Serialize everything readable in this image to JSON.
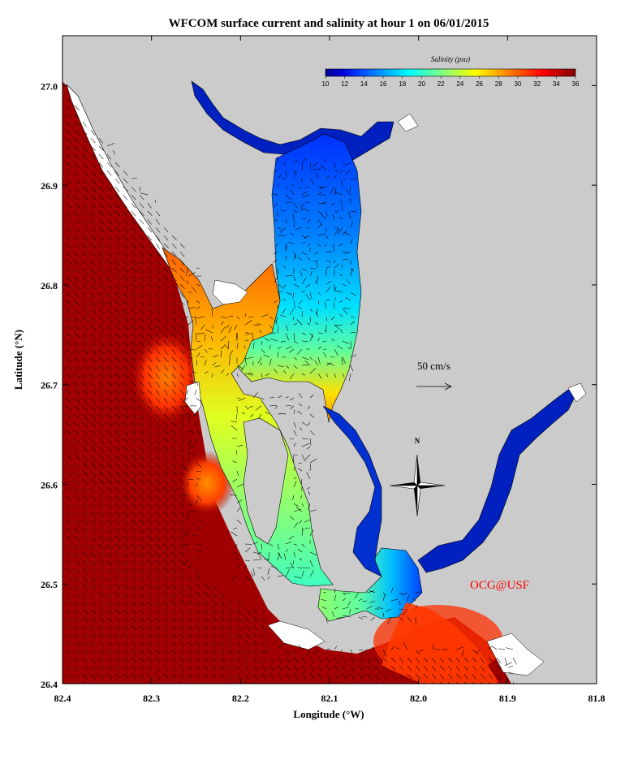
{
  "title": "WFCOM surface current and salinity at hour 1 on 06/01/2015",
  "xlabel": "Longitude (°W)",
  "ylabel": "Latitude (°N)",
  "colorbar": {
    "title": "Salinity (psu)",
    "ticks": [
      "10",
      "12",
      "14",
      "16",
      "18",
      "20",
      "22",
      "24",
      "26",
      "28",
      "30",
      "32",
      "34",
      "36"
    ],
    "range": [
      10,
      36
    ],
    "colors": [
      "#00008f",
      "#0000d9",
      "#0040ff",
      "#0080ff",
      "#00bfff",
      "#00ffff",
      "#40ffbf",
      "#80ff80",
      "#bfff40",
      "#ffff00",
      "#ffbf00",
      "#ff8000",
      "#ff4000",
      "#ff0000",
      "#bf0000",
      "#800000"
    ]
  },
  "scale_vector": {
    "label": "50 cm/s",
    "value_cm_s": 50
  },
  "credit": "OCG@USF",
  "compass_label": "N",
  "colors": {
    "land": "#cbcbcb",
    "water_dry": "#ffffff",
    "gulf": "#a10000",
    "credit": "#ff0000"
  },
  "chart_data": {
    "type": "map",
    "title": "WFCOM surface current and salinity at hour 1 on 06/01/2015",
    "xlabel": "Longitude (°W)",
    "ylabel": "Latitude (°N)",
    "xlim": [
      82.4,
      81.8
    ],
    "ylim": [
      26.4,
      27.05
    ],
    "x_ticks": [
      "82.4",
      "82.3",
      "82.2",
      "82.1",
      "82.0",
      "81.9",
      "81.8"
    ],
    "y_ticks": [
      "26.4",
      "26.5",
      "26.6",
      "26.7",
      "26.8",
      "26.9",
      "27.0"
    ],
    "variable": "Salinity (psu)",
    "vector_field": "surface current",
    "regions": [
      {
        "lon": [
          82.4,
          82.24
        ],
        "lat": [
          26.4,
          27.0
        ],
        "salinity": 35
      },
      {
        "lon": [
          82.15,
          82.05
        ],
        "lat": [
          26.8,
          26.95
        ],
        "salinity": 15
      },
      {
        "lon": [
          82.25,
          82.12
        ],
        "lat": [
          26.7,
          26.78
        ],
        "salinity": 27
      },
      {
        "lon": [
          82.18,
          82.1
        ],
        "lat": [
          26.5,
          26.65
        ],
        "salinity": 24
      },
      {
        "lon": [
          82.07,
          81.94
        ],
        "lat": [
          26.5,
          26.6
        ],
        "salinity": 11
      },
      {
        "lon": [
          81.98,
          81.88
        ],
        "lat": [
          26.44,
          26.5
        ],
        "salinity": 32
      }
    ]
  }
}
